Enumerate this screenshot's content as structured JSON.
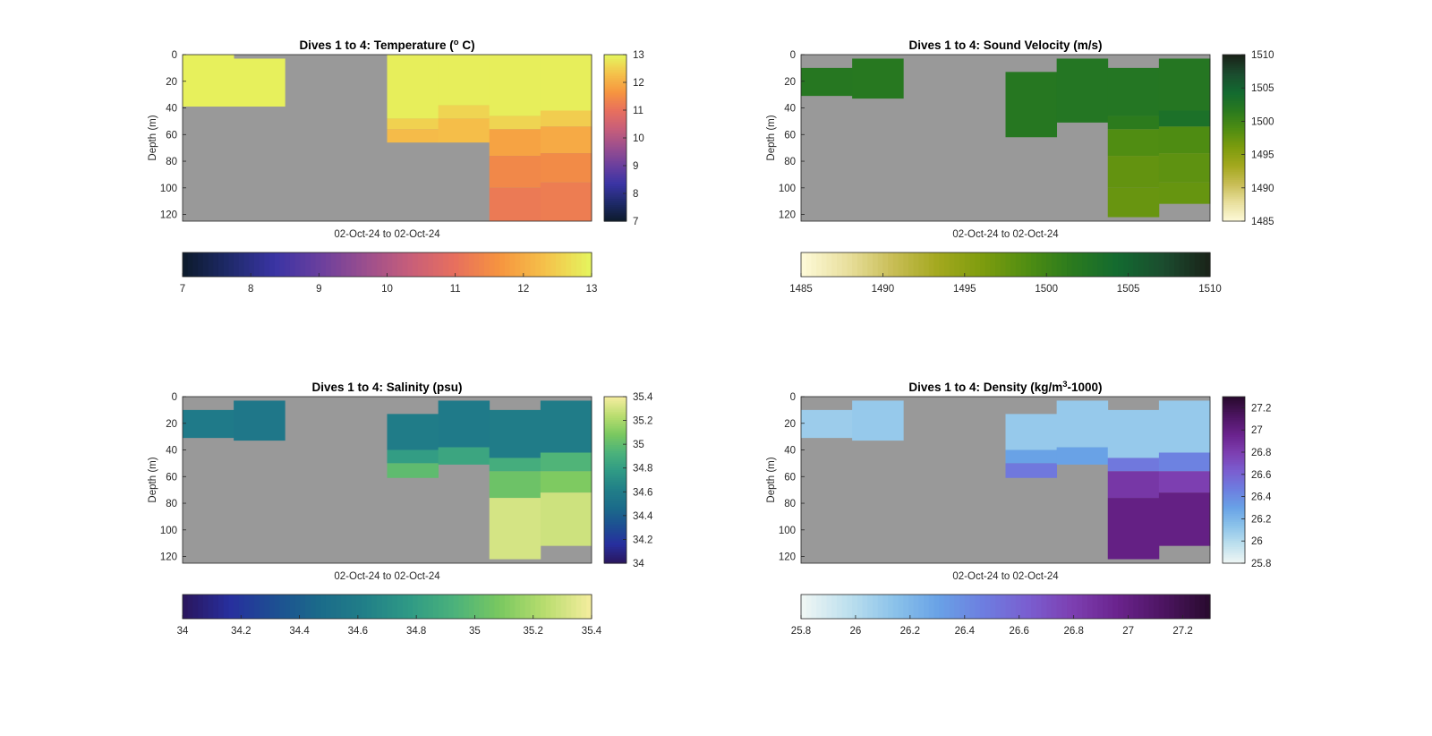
{
  "figure": {
    "background": "#ffffff",
    "nodata_color": "#999999"
  },
  "chart_data": [
    {
      "type": "heatmap",
      "title_pre": "Dives 1 to 4: Temperature (",
      "title_sup": "o",
      "title_post": " C)",
      "ylabel": "Depth (m)",
      "xlabel": "02-Oct-24 to 02-Oct-24",
      "ylim": [
        0,
        125
      ],
      "yticks": [
        "0",
        "20",
        "40",
        "60",
        "80",
        "100",
        "120"
      ],
      "clim": [
        7,
        13
      ],
      "cbar_ticks": [
        "7",
        "8",
        "9",
        "10",
        "11",
        "12",
        "13"
      ],
      "htick_positions": [
        7,
        8,
        9,
        10,
        11,
        12,
        13
      ],
      "colormap": [
        "#0d1b2e",
        "#1f2a6b",
        "#3a34a4",
        "#6a3f9e",
        "#9a4e8e",
        "#c75e7a",
        "#e76f5e",
        "#f6943f",
        "#f5c04a",
        "#e6f35d"
      ],
      "grid": false,
      "profiles": [
        {
          "segments": [
            {
              "top": 0,
              "bottom": 39,
              "value": 12.96
            }
          ]
        },
        {
          "segments": [
            {
              "top": 3,
              "bottom": 39,
              "value": 12.96
            }
          ]
        },
        {
          "segments": []
        },
        {
          "segments": []
        },
        {
          "segments": [
            {
              "top": 0,
              "bottom": 48,
              "value": 12.94
            },
            {
              "top": 48,
              "bottom": 56,
              "value": 12.55
            },
            {
              "top": 56,
              "bottom": 66,
              "value": 12.25
            }
          ]
        },
        {
          "segments": [
            {
              "top": 0,
              "bottom": 38,
              "value": 12.94
            },
            {
              "top": 38,
              "bottom": 48,
              "value": 12.6
            },
            {
              "top": 48,
              "bottom": 66,
              "value": 12.3
            }
          ]
        },
        {
          "segments": [
            {
              "top": 0,
              "bottom": 46,
              "value": 12.94
            },
            {
              "top": 46,
              "bottom": 56,
              "value": 12.6
            },
            {
              "top": 56,
              "bottom": 76,
              "value": 11.9
            },
            {
              "top": 76,
              "bottom": 100,
              "value": 11.45
            },
            {
              "top": 100,
              "bottom": 125,
              "value": 11.2
            }
          ]
        },
        {
          "segments": [
            {
              "top": 0,
              "bottom": 42,
              "value": 12.94
            },
            {
              "top": 42,
              "bottom": 54,
              "value": 12.5
            },
            {
              "top": 54,
              "bottom": 74,
              "value": 12.0
            },
            {
              "top": 74,
              "bottom": 96,
              "value": 11.5
            },
            {
              "top": 96,
              "bottom": 125,
              "value": 11.25
            }
          ]
        }
      ]
    },
    {
      "type": "heatmap",
      "title_pre": "Dives 1 to 4: Sound Velocity (m/s)",
      "title_sup": "",
      "title_post": "",
      "ylabel": "Depth (m)",
      "xlabel": "02-Oct-24 to 02-Oct-24",
      "ylim": [
        0,
        125
      ],
      "yticks": [
        "0",
        "20",
        "40",
        "60",
        "80",
        "100",
        "120"
      ],
      "clim": [
        1485,
        1510
      ],
      "cbar_ticks": [
        "1485",
        "1490",
        "1495",
        "1500",
        "1505",
        "1510"
      ],
      "htick_positions": [
        1485,
        1490,
        1495,
        1500,
        1505,
        1510
      ],
      "colormap": [
        "#fdf9d6",
        "#e8df9c",
        "#c8bd55",
        "#a3a81e",
        "#7d9c0e",
        "#4f8d12",
        "#2a7a1e",
        "#136a30",
        "#1b4d2f",
        "#1a2419"
      ],
      "grid": false,
      "profiles": [
        {
          "segments": [
            {
              "top": 10,
              "bottom": 31,
              "value": 1502.2
            }
          ]
        },
        {
          "segments": [
            {
              "top": 3,
              "bottom": 33,
              "value": 1502.0
            }
          ]
        },
        {
          "segments": []
        },
        {
          "segments": []
        },
        {
          "segments": [
            {
              "top": 13,
              "bottom": 62,
              "value": 1502.2
            }
          ]
        },
        {
          "segments": [
            {
              "top": 3,
              "bottom": 51,
              "value": 1502.4
            }
          ]
        },
        {
          "segments": [
            {
              "top": 10,
              "bottom": 46,
              "value": 1502.4
            },
            {
              "top": 46,
              "bottom": 56,
              "value": 1501.5
            },
            {
              "top": 56,
              "bottom": 76,
              "value": 1498.8
            },
            {
              "top": 76,
              "bottom": 100,
              "value": 1497.7
            },
            {
              "top": 100,
              "bottom": 122,
              "value": 1497.4
            }
          ]
        },
        {
          "segments": [
            {
              "top": 3,
              "bottom": 42,
              "value": 1502.3
            },
            {
              "top": 42,
              "bottom": 54,
              "value": 1503.3
            },
            {
              "top": 54,
              "bottom": 74,
              "value": 1499.0
            },
            {
              "top": 74,
              "bottom": 96,
              "value": 1498.0
            },
            {
              "top": 96,
              "bottom": 112,
              "value": 1497.5
            }
          ]
        }
      ]
    },
    {
      "type": "heatmap",
      "title_pre": "Dives 1 to 4: Salinity (psu)",
      "title_sup": "",
      "title_post": "",
      "ylabel": "Depth (m)",
      "xlabel": "02-Oct-24 to 02-Oct-24",
      "ylim": [
        0,
        125
      ],
      "yticks": [
        "0",
        "20",
        "40",
        "60",
        "80",
        "100",
        "120"
      ],
      "clim": [
        34,
        35.4
      ],
      "cbar_ticks": [
        "34",
        "34.2",
        "34.4",
        "34.6",
        "34.8",
        "35",
        "35.2",
        "35.4"
      ],
      "htick_positions": [
        34,
        34.2,
        34.4,
        34.6,
        34.8,
        35,
        35.2,
        35.4
      ],
      "colormap": [
        "#2a1760",
        "#272f9e",
        "#1d4f92",
        "#1b6b8a",
        "#217f88",
        "#2f9a85",
        "#4bb27b",
        "#79c860",
        "#b8dd6e",
        "#f2ec9c"
      ],
      "grid": false,
      "profiles": [
        {
          "segments": [
            {
              "top": 10,
              "bottom": 31,
              "value": 34.58
            }
          ]
        },
        {
          "segments": [
            {
              "top": 3,
              "bottom": 33,
              "value": 34.56
            }
          ]
        },
        {
          "segments": []
        },
        {
          "segments": []
        },
        {
          "segments": [
            {
              "top": 13,
              "bottom": 40,
              "value": 34.6
            },
            {
              "top": 40,
              "bottom": 50,
              "value": 34.8
            },
            {
              "top": 50,
              "bottom": 61,
              "value": 35.0
            }
          ]
        },
        {
          "segments": [
            {
              "top": 3,
              "bottom": 38,
              "value": 34.58
            },
            {
              "top": 38,
              "bottom": 51,
              "value": 34.85
            }
          ]
        },
        {
          "segments": [
            {
              "top": 10,
              "bottom": 46,
              "value": 34.6
            },
            {
              "top": 46,
              "bottom": 56,
              "value": 34.9
            },
            {
              "top": 56,
              "bottom": 76,
              "value": 35.05
            },
            {
              "top": 76,
              "bottom": 122,
              "value": 35.32
            }
          ]
        },
        {
          "segments": [
            {
              "top": 3,
              "bottom": 42,
              "value": 34.6
            },
            {
              "top": 42,
              "bottom": 56,
              "value": 34.95
            },
            {
              "top": 56,
              "bottom": 72,
              "value": 35.1
            },
            {
              "top": 72,
              "bottom": 112,
              "value": 35.3
            }
          ]
        }
      ]
    },
    {
      "type": "heatmap",
      "title_pre": "Dives 1 to 4: Density (kg/m",
      "title_sup": "3",
      "title_post": "-1000)",
      "ylabel": "Depth (m)",
      "xlabel": "02-Oct-24 to 02-Oct-24",
      "ylim": [
        0,
        125
      ],
      "yticks": [
        "0",
        "20",
        "40",
        "60",
        "80",
        "100",
        "120"
      ],
      "clim": [
        25.8,
        27.3
      ],
      "cbar_ticks": [
        "25.8",
        "26",
        "26.2",
        "26.4",
        "26.6",
        "26.8",
        "27",
        "27.2"
      ],
      "htick_positions": [
        25.8,
        26,
        26.2,
        26.4,
        26.6,
        26.8,
        27,
        27.2
      ],
      "colormap": [
        "#eef6f4",
        "#bde0ee",
        "#8cc3ea",
        "#69a2e6",
        "#6d7ee0",
        "#7a5ed0",
        "#7d3fb1",
        "#6a238d",
        "#4d1562",
        "#2a0b30"
      ],
      "grid": false,
      "profiles": [
        {
          "segments": [
            {
              "top": 10,
              "bottom": 31,
              "value": 26.08
            }
          ]
        },
        {
          "segments": [
            {
              "top": 3,
              "bottom": 33,
              "value": 26.1
            }
          ]
        },
        {
          "segments": []
        },
        {
          "segments": []
        },
        {
          "segments": [
            {
              "top": 13,
              "bottom": 40,
              "value": 26.1
            },
            {
              "top": 40,
              "bottom": 50,
              "value": 26.3
            },
            {
              "top": 50,
              "bottom": 61,
              "value": 26.5
            }
          ]
        },
        {
          "segments": [
            {
              "top": 3,
              "bottom": 38,
              "value": 26.1
            },
            {
              "top": 38,
              "bottom": 51,
              "value": 26.3
            }
          ]
        },
        {
          "segments": [
            {
              "top": 10,
              "bottom": 46,
              "value": 26.1
            },
            {
              "top": 46,
              "bottom": 56,
              "value": 26.5
            },
            {
              "top": 56,
              "bottom": 76,
              "value": 26.85
            },
            {
              "top": 76,
              "bottom": 122,
              "value": 27.0
            }
          ]
        },
        {
          "segments": [
            {
              "top": 3,
              "bottom": 42,
              "value": 26.1
            },
            {
              "top": 42,
              "bottom": 56,
              "value": 26.45
            },
            {
              "top": 56,
              "bottom": 72,
              "value": 26.8
            },
            {
              "top": 72,
              "bottom": 112,
              "value": 27.0
            }
          ]
        }
      ]
    }
  ]
}
